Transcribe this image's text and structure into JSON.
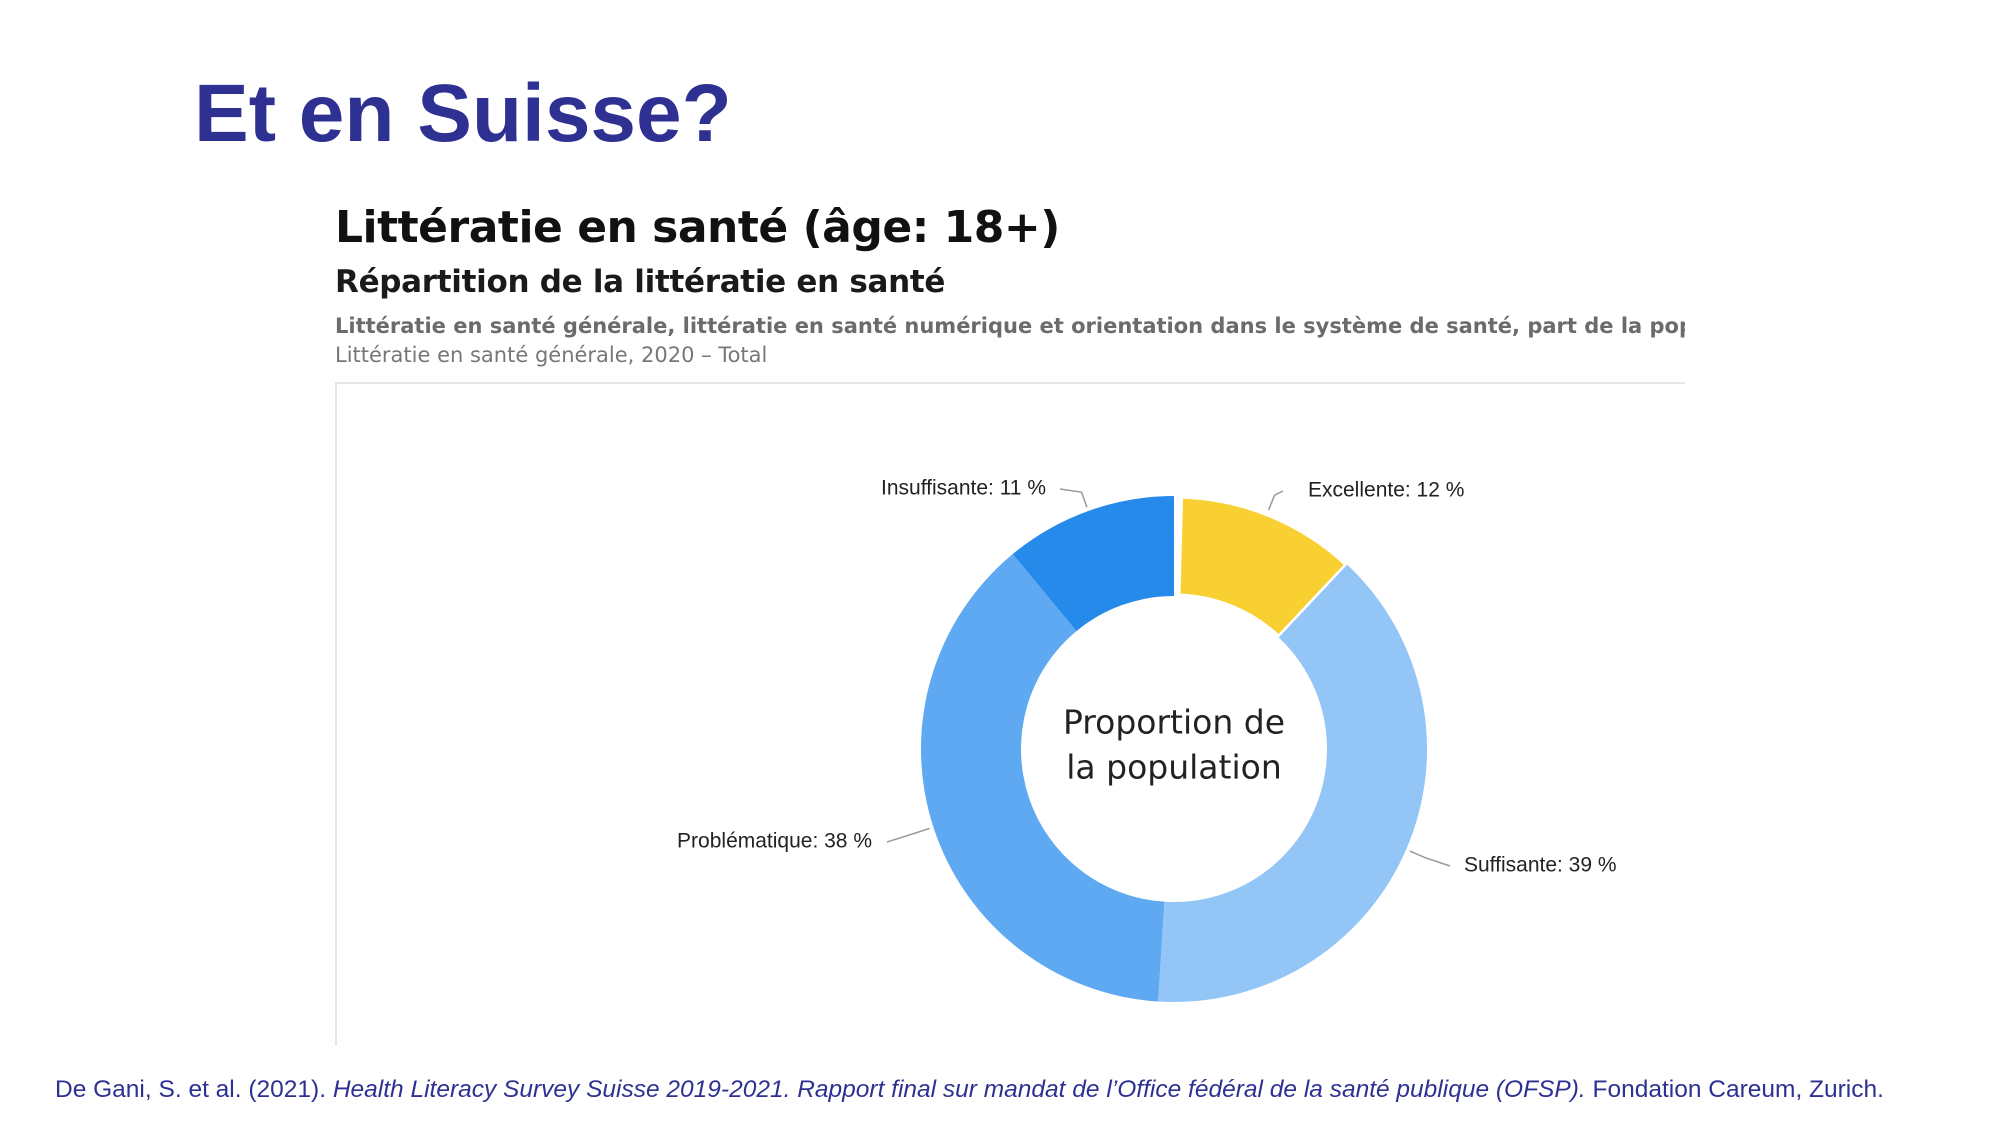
{
  "slide": {
    "title": "Et en Suisse?"
  },
  "figure": {
    "title": "Littératie en santé (âge: 18+)",
    "subtitle": "Répartition de la littératie en santé",
    "description": "Littératie en santé générale, littératie en santé numérique et orientation dans le système de santé, part de la population d",
    "selection": "Littératie en santé générale, 2020 – Total"
  },
  "chart_data": {
    "type": "pie",
    "variant": "donut",
    "center_label": [
      "Proportion de",
      "la population"
    ],
    "unit": "%",
    "slices": [
      {
        "name": "Excellente",
        "value": 12,
        "label": "Excellente: 12 %",
        "color": "#f9d031"
      },
      {
        "name": "Suffisante",
        "value": 39,
        "label": "Suffisante: 39 %",
        "color": "#93c6f6"
      },
      {
        "name": "Problématique",
        "value": 38,
        "label": "Problématique: 38 %",
        "color": "#5ea9f2"
      },
      {
        "name": "Insuffisante",
        "value": 11,
        "label": "Insuffisante: 11 %",
        "color": "#268aeb"
      }
    ]
  },
  "citation": {
    "authors": "De Gani, S. et al. (2021).",
    "title": "Health Literacy Survey Suisse 2019-2021. Rapport final sur mandat de l’Office fédéral de la santé publique (OFSP).",
    "publisher": "Fondation Careum, Zurich."
  },
  "colors": {
    "title": "#2e3192",
    "label_text": "#222222",
    "leader": "#9a9a9a"
  }
}
